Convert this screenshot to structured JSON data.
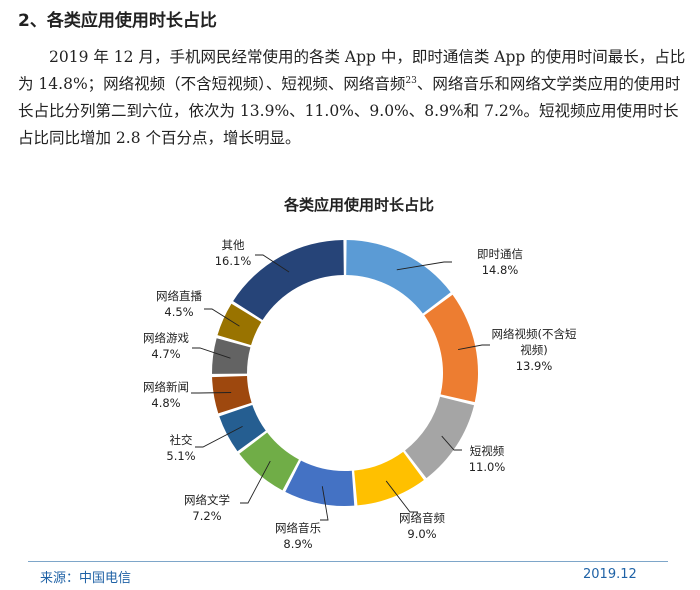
{
  "section": {
    "heading": "2、各类应用使用时长占比",
    "paragraph_part1": "2019 年 12 月，手机网民经常使用的各类 App 中，即时通信类 App 的使用时间最长，占比为 14.8%；网络视频（不含短视频）、短视频、网络音频",
    "footnote_ref": "23",
    "paragraph_part2": "、网络音乐和网络文学类应用的使用时长占比分列第二到六位，依次为 13.9%、11.0%、9.0%、8.9%和 7.2%。短视频应用使用时长占比同比增加 2.8 个百分点，增长明显。"
  },
  "chart_data": {
    "type": "pie",
    "variant": "donut",
    "title": "各类应用使用时长占比",
    "unit": "%",
    "slices": [
      {
        "label": "即时通信",
        "value": 14.8,
        "value_label": "14.8%",
        "color": "#5b9bd5"
      },
      {
        "label": "网络视频(不含短视频)",
        "value": 13.9,
        "value_label": "13.9%",
        "color": "#ed7d31"
      },
      {
        "label": "短视频",
        "value": 11.0,
        "value_label": "11.0%",
        "color": "#a5a5a5"
      },
      {
        "label": "网络音频",
        "value": 9.0,
        "value_label": "9.0%",
        "color": "#ffc000"
      },
      {
        "label": "网络音乐",
        "value": 8.9,
        "value_label": "8.9%",
        "color": "#4472c4"
      },
      {
        "label": "网络文学",
        "value": 7.2,
        "value_label": "7.2%",
        "color": "#70ad47"
      },
      {
        "label": "社交",
        "value": 5.1,
        "value_label": "5.1%",
        "color": "#255e91"
      },
      {
        "label": "网络新闻",
        "value": 4.8,
        "value_label": "4.8%",
        "color": "#9e480e"
      },
      {
        "label": "网络游戏",
        "value": 4.7,
        "value_label": "4.7%",
        "color": "#636363"
      },
      {
        "label": "网络直播",
        "value": 4.5,
        "value_label": "4.5%",
        "color": "#997300"
      },
      {
        "label": "其他",
        "value": 16.1,
        "value_label": "16.1%",
        "color": "#264478"
      }
    ]
  },
  "footer": {
    "source": "来源：中国电信",
    "date": "2019.12"
  }
}
